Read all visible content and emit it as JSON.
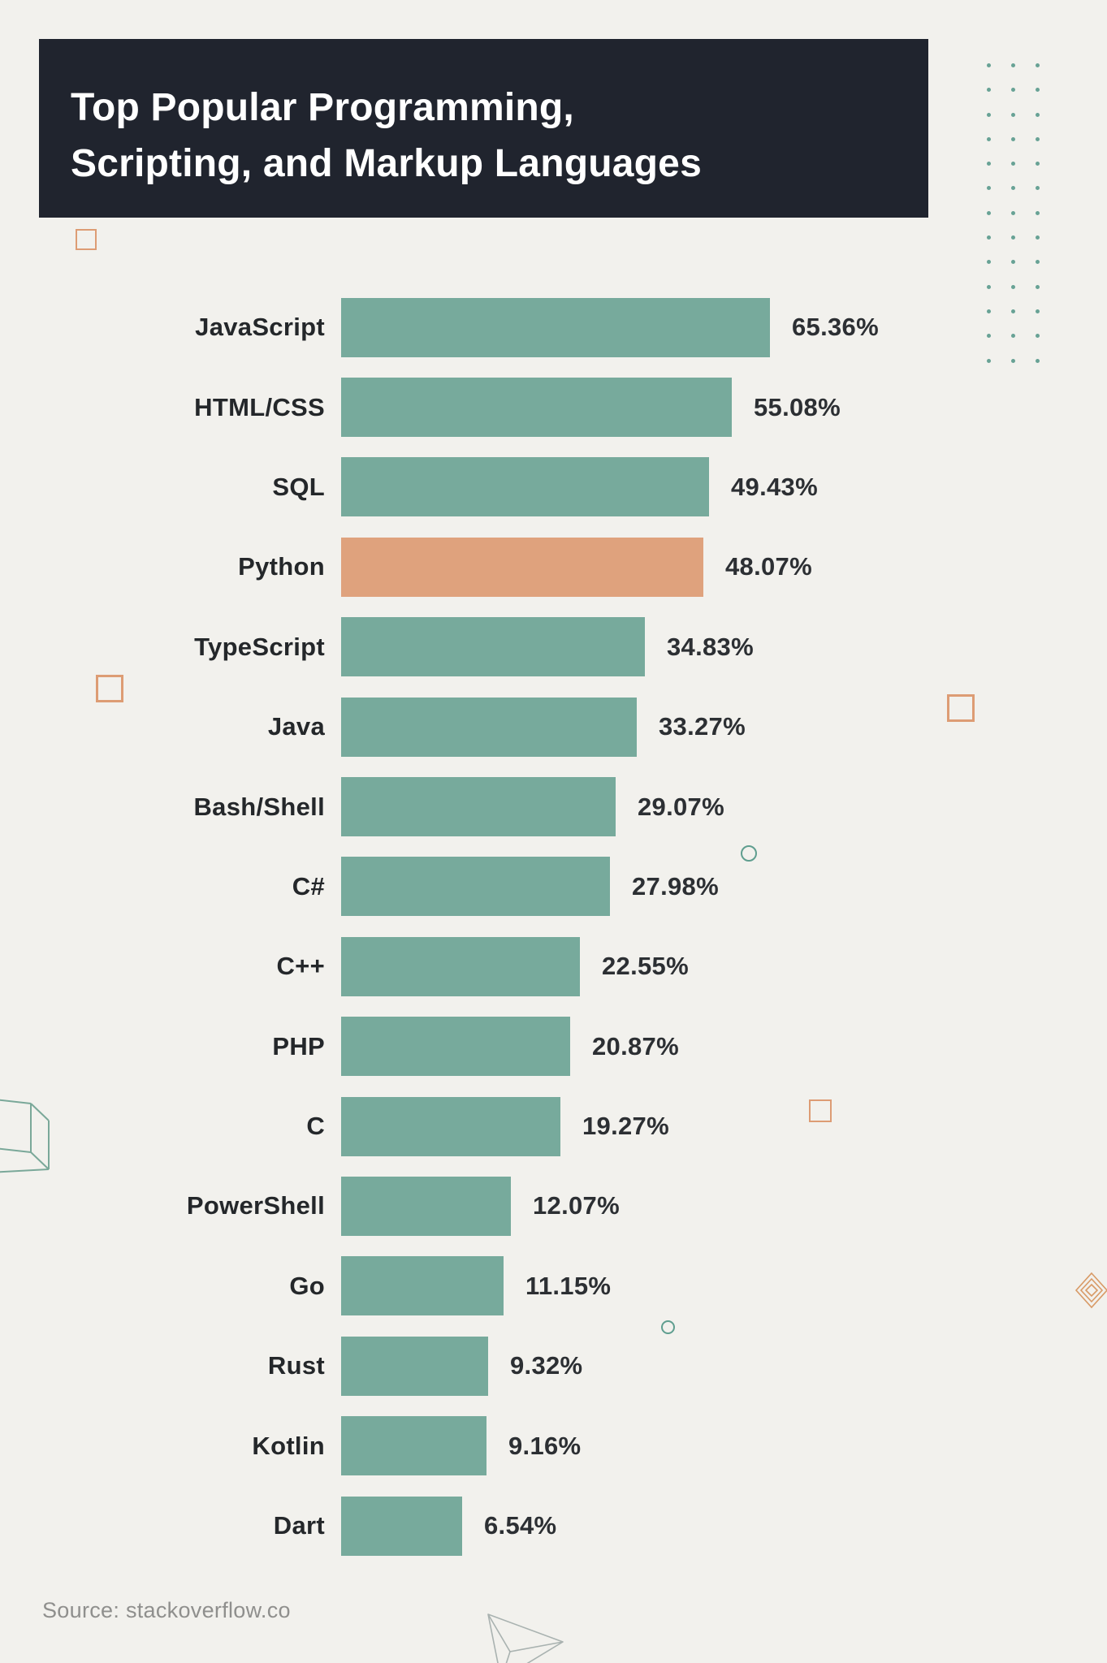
{
  "header": {
    "lines": [
      "Top Popular Programming,",
      "Scripting, and Markup Languages"
    ]
  },
  "source": {
    "label": "Source: stackoverflow.co"
  },
  "chart_data": {
    "type": "bar",
    "orientation": "horizontal",
    "title": "Top Popular Programming, Scripting, and Markup Languages",
    "categories": [
      "JavaScript",
      "HTML/CSS",
      "SQL",
      "Python",
      "TypeScript",
      "Java",
      "Bash/Shell",
      "C#",
      "C++",
      "PHP",
      "C",
      "PowerShell",
      "Go",
      "Rust",
      "Kotlin",
      "Dart"
    ],
    "values": [
      65.36,
      55.08,
      49.43,
      48.07,
      34.83,
      33.27,
      29.07,
      27.98,
      22.55,
      20.87,
      19.27,
      12.07,
      11.15,
      9.32,
      9.16,
      6.54
    ],
    "value_labels": [
      "65.36%",
      "55.08%",
      "49.43%",
      "48.07%",
      "34.83%",
      "33.27%",
      "29.07%",
      "27.98%",
      "22.55%",
      "20.87%",
      "19.27%",
      "12.07%",
      "11.15%",
      "9.32%",
      "9.16%",
      "6.54%"
    ],
    "value_range": [
      0,
      100
    ],
    "highlight_category": "Python",
    "legend": false,
    "grid": false,
    "colors": {
      "bar": "#77aa9c",
      "highlight": "#dfa27d",
      "label_text": "#24272a",
      "value_text": "#2c2f33"
    }
  },
  "decorations": {
    "dot_grid": {
      "rows": 13,
      "cols": 3,
      "color": "#68a295"
    },
    "accent_orange": "#dd9c74",
    "accent_teal": "#5f9e8f",
    "header_bg": "#20242e",
    "page_bg": "#f2f1ed"
  }
}
